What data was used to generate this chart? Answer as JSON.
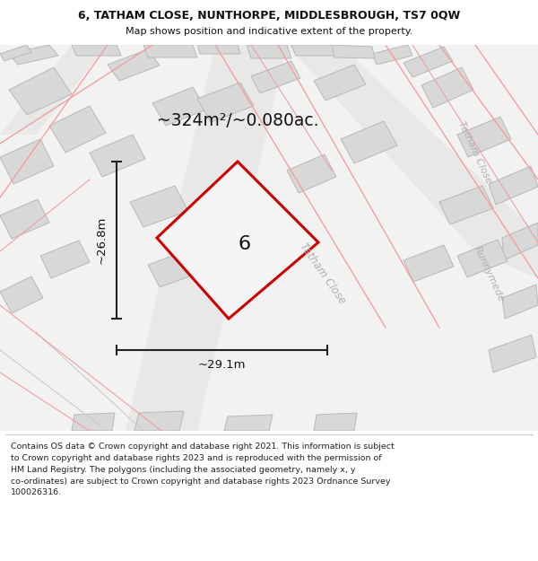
{
  "title_line1": "6, TATHAM CLOSE, NUNTHORPE, MIDDLESBROUGH, TS7 0QW",
  "title_line2": "Map shows position and indicative extent of the property.",
  "area_label": "~324m²/~0.080ac.",
  "property_number": "6",
  "width_label": "~29.1m",
  "height_label": "~26.8m",
  "footer_lines": [
    "Contains OS data © Crown copyright and database right 2021. This information is subject to Crown copyright and database rights 2023 and is reproduced with the permission of",
    "HM Land Registry. The polygons (including the associated geometry, namely x, y co-ordinates) are subject to Crown copyright and database rights 2023 Ordnance Survey",
    "100026316."
  ],
  "map_bg": "#f0f0f0",
  "property_fill": "#ffffff",
  "property_edge": "#cc0000",
  "building_fill": "#d8d8d8",
  "building_edge": "#b0b0b0",
  "road_fill": "#e8e8e8",
  "road_pink": "#f0a0a0",
  "road_gray": "#cccccc",
  "road_label_color": "#b0b0b0",
  "white": "#ffffff"
}
